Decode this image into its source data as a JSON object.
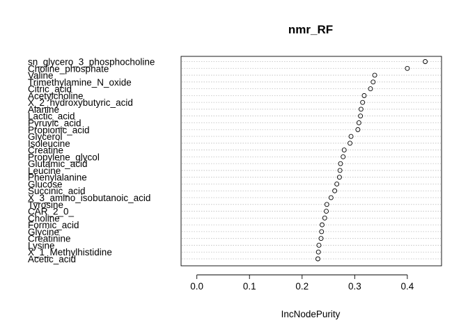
{
  "chart_data": {
    "type": "scatter",
    "title": "nmr_RF",
    "xlabel": "IncNodePurity",
    "ylabel": "",
    "xlim": [
      -0.03,
      0.465
    ],
    "xticks": [
      0.0,
      0.1,
      0.2,
      0.3,
      0.4
    ],
    "xtick_labels": [
      "0.0",
      "0.1",
      "0.2",
      "0.3",
      "0.4"
    ],
    "grid": "dotted horizontal",
    "categories": [
      "sn_glycero_3_phosphocholine",
      "Choline_phosphate",
      "Valine",
      "Trimethylamine_N_oxide",
      "Citric_acid",
      "Acetylcholine",
      "X_2_hydroxybutyric_acid",
      "Alanine",
      "Lactic_acid",
      "Pyruvic_acid",
      "Propionic_acid",
      "Glycerol",
      "Isoleucine",
      "Creatine",
      "Propylene_glycol",
      "Glutamic_acid",
      "Leucine",
      "Phenylalanine",
      "Glucose",
      "Succinic_acid",
      "X_3_amino_isobutanoic_acid",
      "Tyrosine",
      "CAR_2_0_",
      "Choline",
      "Formic_acid",
      "Glycine",
      "Creatinine",
      "Lysine",
      "X_1_Methylhistidine",
      "Acetic_acid"
    ],
    "values": [
      0.434,
      0.4,
      0.338,
      0.335,
      0.33,
      0.318,
      0.315,
      0.312,
      0.311,
      0.308,
      0.306,
      0.293,
      0.291,
      0.28,
      0.278,
      0.273,
      0.272,
      0.271,
      0.266,
      0.262,
      0.255,
      0.247,
      0.246,
      0.243,
      0.238,
      0.237,
      0.236,
      0.232,
      0.231,
      0.23
    ]
  }
}
